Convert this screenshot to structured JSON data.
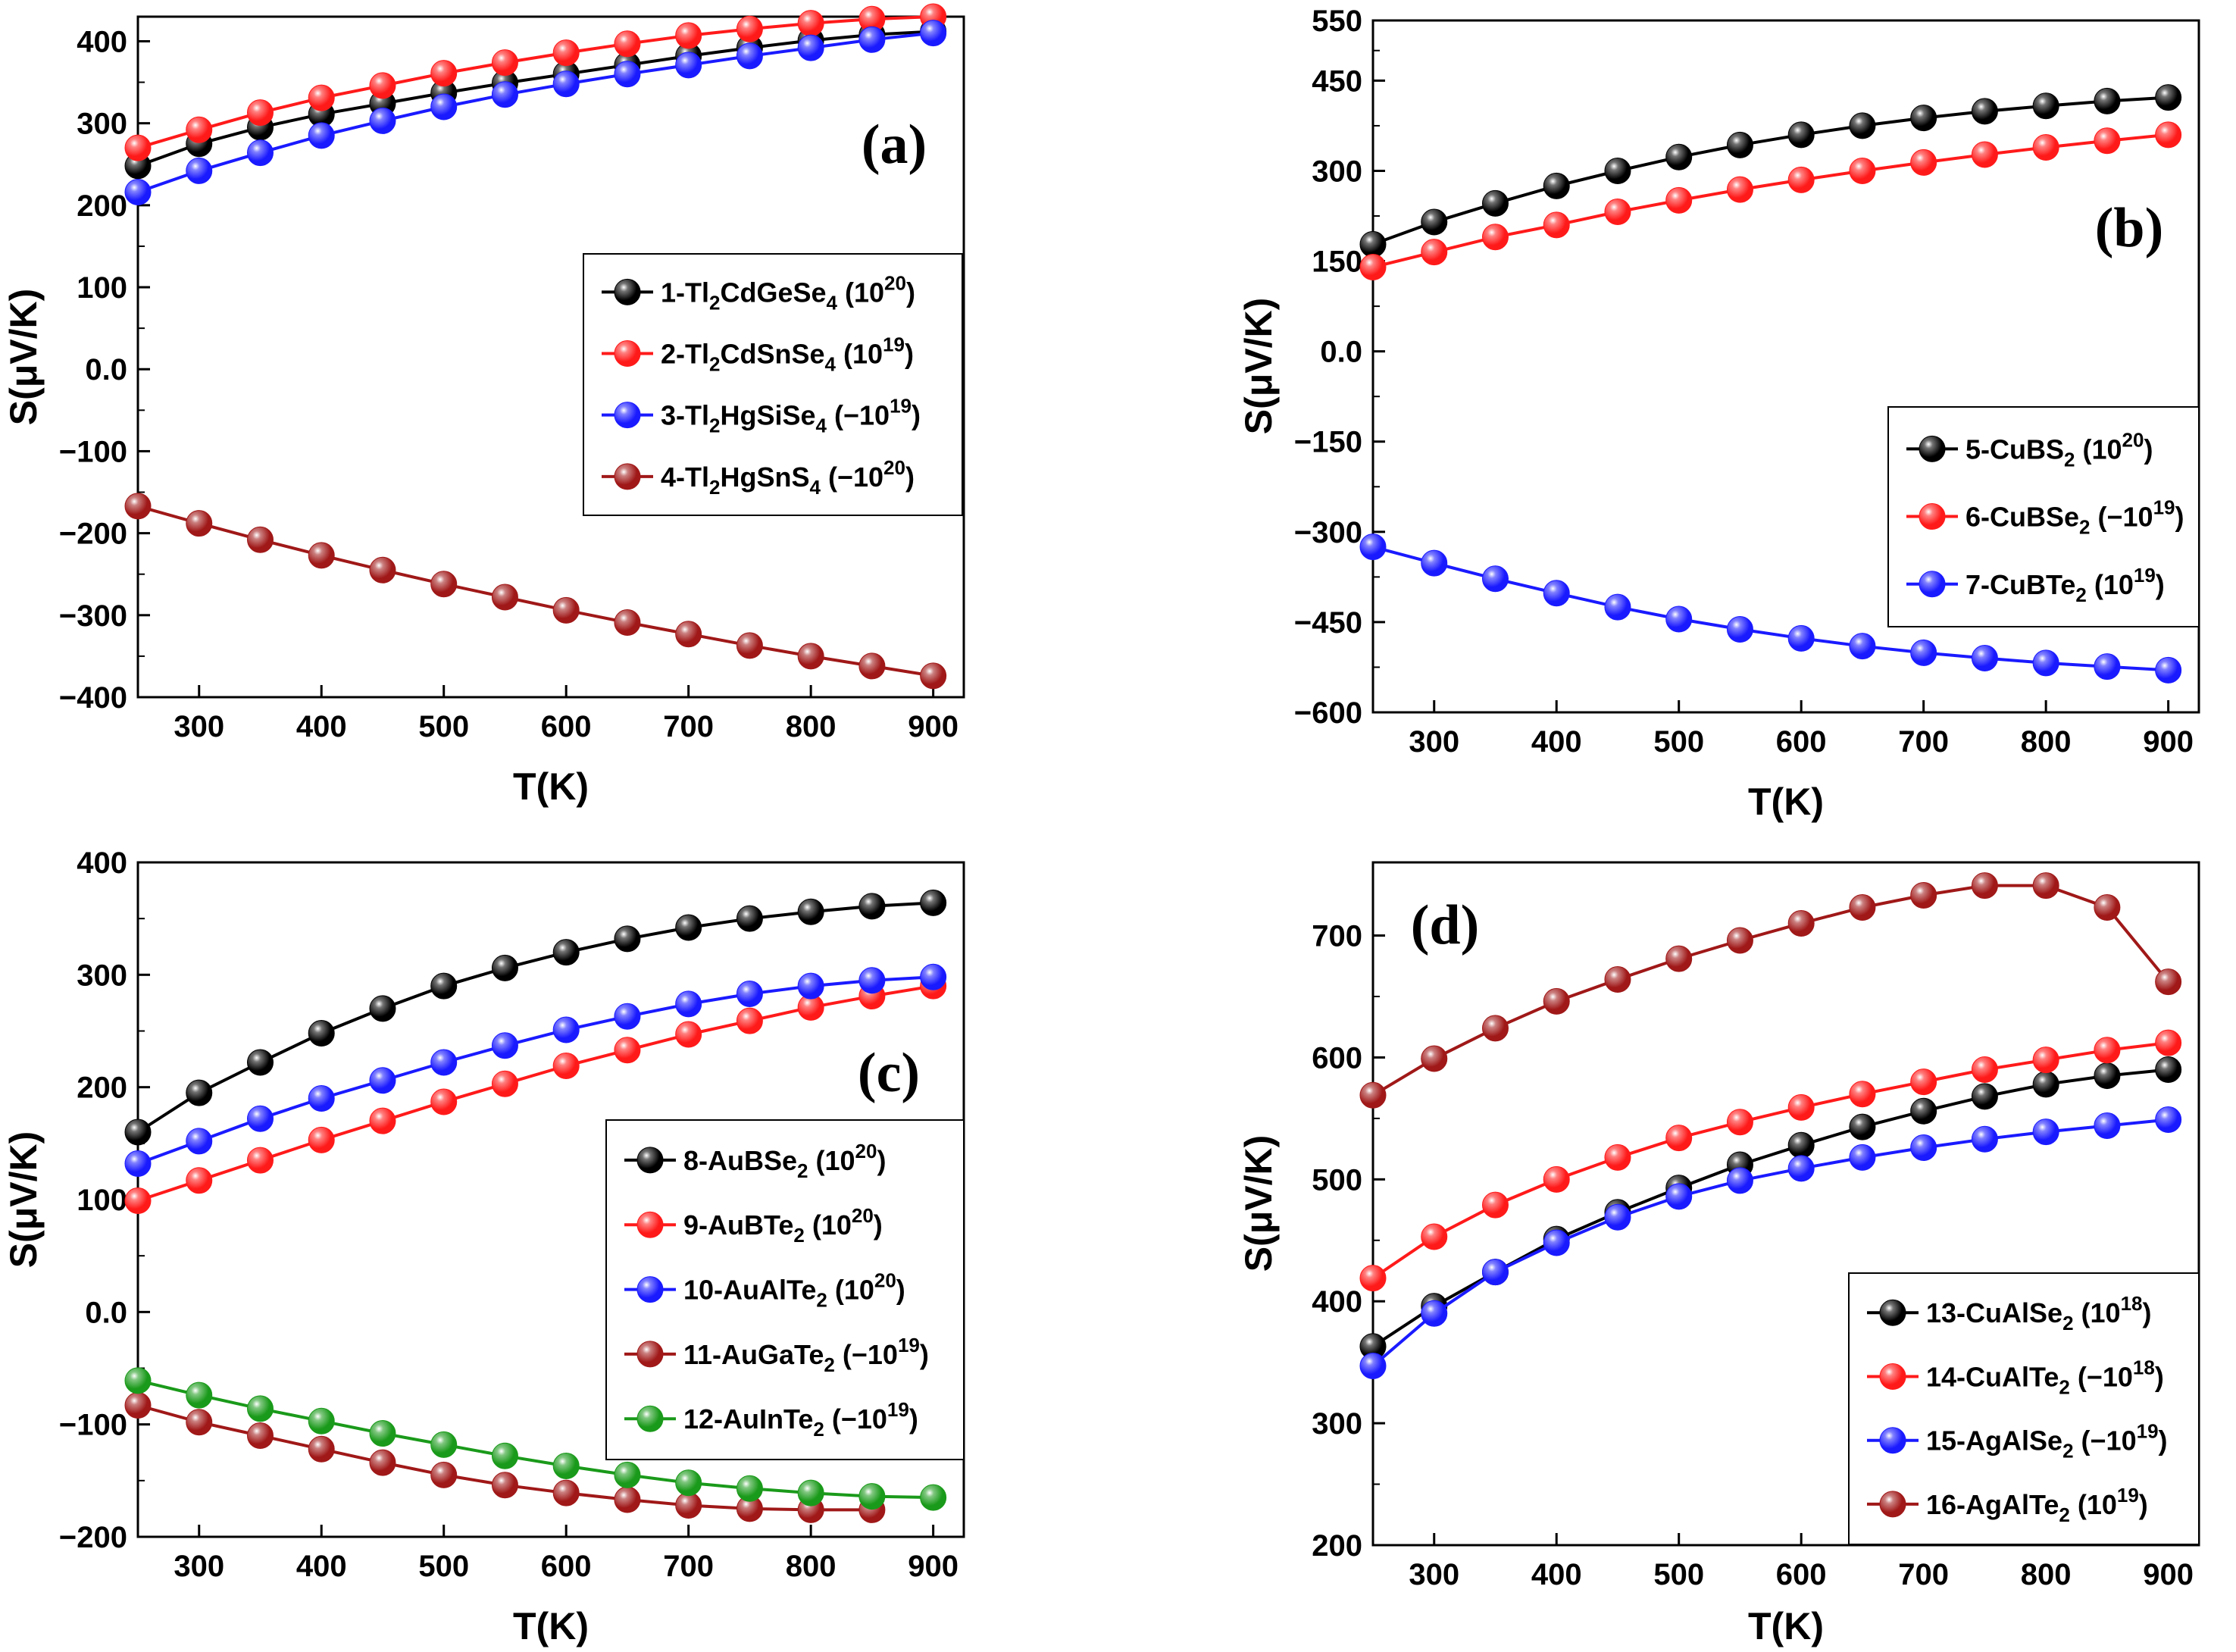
{
  "chart_data": [
    {
      "type": "line",
      "panel_label": "(a)",
      "xlabel": "T(K)",
      "ylabel": "S(μV/K)",
      "xlim": [
        250,
        925
      ],
      "ylim": [
        -400,
        430
      ],
      "xticks": [
        300,
        400,
        500,
        600,
        700,
        800,
        900
      ],
      "yticks": [
        -400,
        -300,
        -200,
        -100,
        0,
        100,
        200,
        300,
        400
      ],
      "ytick_labels": [
        "−400",
        "−300",
        "−200",
        "−100",
        "0.0",
        "100",
        "200",
        "300",
        "400"
      ],
      "legend_position": "center-right",
      "x": [
        250,
        300,
        350,
        400,
        450,
        500,
        550,
        600,
        650,
        700,
        750,
        800,
        850,
        900
      ],
      "series": [
        {
          "name": "1-Tl2CdGeSe4",
          "label_prefix": "1-Tl",
          "sub1": "2",
          "label_mid": "CdGeSe",
          "sub2": "4",
          "doping_base": "(10",
          "doping_sign": "",
          "doping_exp": "20",
          "doping_end": ")",
          "color": "#000000",
          "values": [
            248,
            275,
            295,
            311,
            324,
            337,
            349,
            360,
            371,
            382,
            392,
            401,
            408,
            412
          ]
        },
        {
          "name": "2-Tl2CdSnSe4",
          "label_prefix": "2-Tl",
          "sub1": "2",
          "label_mid": "CdSnSe",
          "sub2": "4",
          "doping_base": "(10",
          "doping_sign": "",
          "doping_exp": "19",
          "doping_end": ")",
          "color": "#ff1a1a",
          "values": [
            270,
            292,
            313,
            331,
            346,
            361,
            374,
            386,
            397,
            407,
            415,
            422,
            427,
            430
          ]
        },
        {
          "name": "3-Tl2HgSiSe4",
          "label_prefix": "3-Tl",
          "sub1": "2",
          "label_mid": "HgSiSe",
          "sub2": "4",
          "doping_base": "(10",
          "doping_sign": "−",
          "doping_exp": "19",
          "doping_end": ")",
          "color": "#1a1aff",
          "values": [
            216,
            242,
            264,
            285,
            303,
            320,
            335,
            348,
            360,
            371,
            382,
            392,
            402,
            410
          ]
        },
        {
          "name": "4-Tl2HgSnS4",
          "label_prefix": "4-Tl",
          "sub1": "2",
          "label_mid": "HgSnS",
          "sub2": "4",
          "doping_base": "(10",
          "doping_sign": "−",
          "doping_exp": "20",
          "doping_end": ")",
          "color": "#a01818",
          "values": [
            -167,
            -188,
            -208,
            -227,
            -245,
            -262,
            -278,
            -294,
            -309,
            -323,
            -337,
            -350,
            -362,
            -374
          ]
        }
      ]
    },
    {
      "type": "line",
      "panel_label": "(b)",
      "xlabel": "T(K)",
      "ylabel": "S(μV/K)",
      "xlim": [
        250,
        925
      ],
      "ylim": [
        -600,
        550
      ],
      "xticks": [
        300,
        400,
        500,
        600,
        700,
        800,
        900
      ],
      "yticks": [
        -600,
        -450,
        -300,
        -150,
        0,
        150,
        300,
        450,
        550
      ],
      "ytick_labels": [
        "−600",
        "−450",
        "−300",
        "−150",
        "0.0",
        "150",
        "300",
        "450",
        "550"
      ],
      "legend_position": "center-right",
      "x": [
        250,
        300,
        350,
        400,
        450,
        500,
        550,
        600,
        650,
        700,
        750,
        800,
        850,
        900
      ],
      "series": [
        {
          "name": "5-CuBS2",
          "label_prefix": "5-CuBS",
          "sub1": "2",
          "label_mid": "",
          "sub2": "",
          "doping_base": "(10",
          "doping_sign": "",
          "doping_exp": "20",
          "doping_end": ")",
          "color": "#000000",
          "values": [
            178,
            215,
            246,
            275,
            300,
            323,
            343,
            360,
            375,
            388,
            399,
            408,
            416,
            422
          ]
        },
        {
          "name": "6-CuBSe2",
          "label_prefix": "6-CuBSe",
          "sub1": "2",
          "label_mid": "",
          "sub2": "",
          "doping_base": "(10",
          "doping_sign": "−",
          "doping_exp": "19",
          "doping_end": ")",
          "color": "#ff1a1a",
          "values": [
            140,
            165,
            190,
            210,
            232,
            251,
            269,
            285,
            300,
            314,
            327,
            339,
            350,
            360
          ]
        },
        {
          "name": "7-CuBTe2",
          "label_prefix": "7-CuBTe",
          "sub1": "2",
          "label_mid": "",
          "sub2": "",
          "doping_base": "(10",
          "doping_sign": "",
          "doping_exp": "19",
          "doping_end": ")",
          "color": "#1a1aff",
          "values": [
            -325,
            -352,
            -378,
            -402,
            -425,
            -445,
            -462,
            -477,
            -490,
            -501,
            -510,
            -518,
            -524,
            -530
          ]
        }
      ]
    },
    {
      "type": "line",
      "panel_label": "(c)",
      "xlabel": "T(K)",
      "ylabel": "S(μV/K)",
      "xlim": [
        250,
        925
      ],
      "ylim": [
        -200,
        400
      ],
      "xticks": [
        300,
        400,
        500,
        600,
        700,
        800,
        900
      ],
      "yticks": [
        -200,
        -100,
        0,
        100,
        200,
        300,
        400
      ],
      "ytick_labels": [
        "−200",
        "−100",
        "0.0",
        "100",
        "200",
        "300",
        "400"
      ],
      "legend_position": "center-right",
      "x": [
        250,
        300,
        350,
        400,
        450,
        500,
        550,
        600,
        650,
        700,
        750,
        800,
        850,
        900
      ],
      "series": [
        {
          "name": "8-AuBSe2",
          "label_prefix": "8-AuBSe",
          "sub1": "2",
          "label_mid": "",
          "sub2": "",
          "doping_base": "(10",
          "doping_sign": "",
          "doping_exp": "20",
          "doping_end": ")",
          "color": "#000000",
          "values": [
            160,
            195,
            222,
            248,
            270,
            290,
            306,
            320,
            332,
            342,
            350,
            356,
            361,
            364
          ]
        },
        {
          "name": "9-AuBTe2",
          "label_prefix": "9-AuBTe",
          "sub1": "2",
          "label_mid": "",
          "sub2": "",
          "doping_base": "(10",
          "doping_sign": "",
          "doping_exp": "20",
          "doping_end": ")",
          "color": "#ff1a1a",
          "values": [
            99,
            117,
            135,
            153,
            170,
            187,
            203,
            219,
            233,
            247,
            259,
            271,
            281,
            290
          ]
        },
        {
          "name": "10-AuAlTe2",
          "label_prefix": "10-AuAlTe",
          "sub1": "2",
          "label_mid": "",
          "sub2": "",
          "doping_base": "(10",
          "doping_sign": "",
          "doping_exp": "20",
          "doping_end": ")",
          "color": "#1a1aff",
          "values": [
            132,
            152,
            172,
            190,
            206,
            222,
            237,
            251,
            263,
            274,
            283,
            290,
            295,
            298
          ]
        },
        {
          "name": "11-AuGaTe2",
          "label_prefix": "11-AuGaTe",
          "sub1": "2",
          "label_mid": "",
          "sub2": "",
          "doping_base": "(10",
          "doping_sign": "−",
          "doping_exp": "19",
          "doping_end": ")",
          "color": "#a01818",
          "skip_last": true,
          "values": [
            -83,
            -98,
            -110,
            -122,
            -134,
            -145,
            -154,
            -161,
            -167,
            -172,
            -175,
            -176,
            -176,
            null
          ]
        },
        {
          "name": "12-AuInTe2",
          "label_prefix": "12-AuInTe",
          "sub1": "2",
          "label_mid": "",
          "sub2": "",
          "doping_base": "(10",
          "doping_sign": "−",
          "doping_exp": "19",
          "doping_end": ")",
          "color": "#1a9a1a",
          "values": [
            -61,
            -74,
            -86,
            -97,
            -108,
            -118,
            -128,
            -137,
            -145,
            -152,
            -157,
            -161,
            -164,
            -165
          ]
        }
      ]
    },
    {
      "type": "line",
      "panel_label": "(d)",
      "xlabel": "T(K)",
      "ylabel": "S(μV/K)",
      "xlim": [
        250,
        925
      ],
      "ylim": [
        200,
        760
      ],
      "xticks": [
        300,
        400,
        500,
        600,
        700,
        800,
        900
      ],
      "yticks": [
        200,
        300,
        400,
        500,
        600,
        700
      ],
      "ytick_labels": [
        "200",
        "300",
        "400",
        "500",
        "600",
        "700"
      ],
      "legend_position": "bottom-right",
      "x": [
        250,
        300,
        350,
        400,
        450,
        500,
        550,
        600,
        650,
        700,
        750,
        800,
        850,
        900
      ],
      "series": [
        {
          "name": "13-CuAlSe2",
          "label_prefix": "13-CuAlSe",
          "sub1": "2",
          "label_mid": "",
          "sub2": "",
          "doping_base": "(10",
          "doping_sign": "",
          "doping_exp": "18",
          "doping_end": ")",
          "color": "#000000",
          "values": [
            363,
            396,
            424,
            451,
            473,
            493,
            512,
            528,
            543,
            556,
            568,
            578,
            585,
            590
          ]
        },
        {
          "name": "14-CuAlTe2",
          "label_prefix": "14-CuAlTe",
          "sub1": "2",
          "label_mid": "",
          "sub2": "",
          "doping_base": "(10",
          "doping_sign": "−",
          "doping_exp": "18",
          "doping_end": ")",
          "color": "#ff1a1a",
          "values": [
            419,
            453,
            479,
            500,
            518,
            534,
            547,
            559,
            570,
            580,
            590,
            598,
            606,
            612
          ]
        },
        {
          "name": "15-AgAlSe2",
          "label_prefix": "15-AgAlSe",
          "sub1": "2",
          "label_mid": "",
          "sub2": "",
          "doping_base": "(10",
          "doping_sign": "−",
          "doping_exp": "19",
          "doping_end": ")",
          "color": "#1a1aff",
          "values": [
            347,
            390,
            424,
            448,
            469,
            486,
            499,
            509,
            518,
            526,
            533,
            539,
            544,
            549
          ]
        },
        {
          "name": "16-AgAlTe2",
          "label_prefix": "16-AgAlTe",
          "sub1": "2",
          "label_mid": "",
          "sub2": "",
          "doping_base": "(10",
          "doping_sign": "",
          "doping_exp": "19",
          "doping_end": ")",
          "color": "#a01818",
          "values": [
            569,
            599,
            624,
            646,
            664,
            681,
            696,
            710,
            723,
            733,
            741,
            741,
            723,
            662
          ]
        }
      ]
    }
  ]
}
